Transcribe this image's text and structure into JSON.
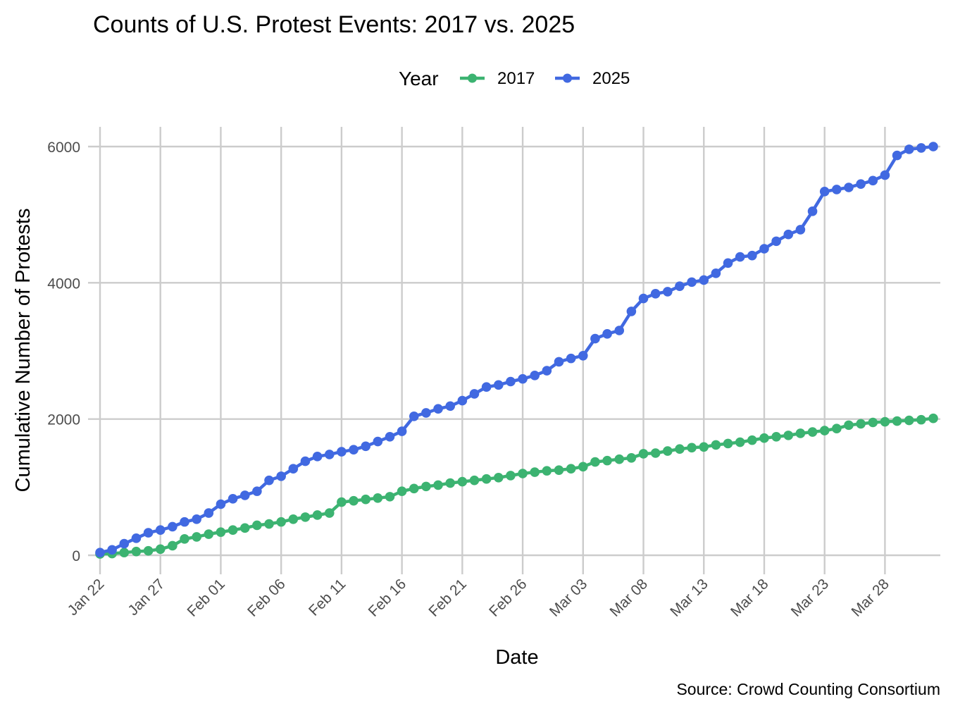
{
  "chart_data": {
    "type": "line",
    "title": "Counts of U.S. Protest Events: 2017 vs. 2025",
    "xlabel": "Date",
    "ylabel": "Cumulative Number of Protests",
    "caption": "Source: Crowd Counting Consortium",
    "legend": {
      "title": "Year",
      "position": "top"
    },
    "ylim": [
      -150,
      6300
    ],
    "yticks": [
      0,
      2000,
      4000,
      6000
    ],
    "x_start_label": "Jan 22",
    "num_days": 70,
    "xticks": [
      {
        "day": 0,
        "label": "Jan 22"
      },
      {
        "day": 5,
        "label": "Jan 27"
      },
      {
        "day": 10,
        "label": "Feb 01"
      },
      {
        "day": 15,
        "label": "Feb 06"
      },
      {
        "day": 20,
        "label": "Feb 11"
      },
      {
        "day": 25,
        "label": "Feb 16"
      },
      {
        "day": 30,
        "label": "Feb 21"
      },
      {
        "day": 35,
        "label": "Feb 26"
      },
      {
        "day": 40,
        "label": "Mar 03"
      },
      {
        "day": 45,
        "label": "Mar 08"
      },
      {
        "day": 50,
        "label": "Mar 13"
      },
      {
        "day": 55,
        "label": "Mar 18"
      },
      {
        "day": 60,
        "label": "Mar 23"
      },
      {
        "day": 65,
        "label": "Mar 28"
      }
    ],
    "series": [
      {
        "name": "2017",
        "color": "#3cb371",
        "values": [
          20,
          25,
          40,
          55,
          65,
          90,
          140,
          240,
          270,
          310,
          340,
          370,
          400,
          440,
          460,
          490,
          530,
          560,
          590,
          620,
          780,
          800,
          820,
          840,
          860,
          940,
          980,
          1010,
          1030,
          1060,
          1080,
          1100,
          1120,
          1140,
          1170,
          1200,
          1220,
          1240,
          1250,
          1270,
          1300,
          1370,
          1390,
          1410,
          1430,
          1490,
          1500,
          1530,
          1560,
          1580,
          1590,
          1620,
          1640,
          1660,
          1690,
          1720,
          1740,
          1760,
          1790,
          1810,
          1830,
          1860,
          1910,
          1930,
          1950,
          1960,
          1970,
          1980,
          1990,
          2010
        ]
      },
      {
        "name": "2025",
        "color": "#4169e1",
        "values": [
          40,
          80,
          170,
          250,
          330,
          370,
          420,
          490,
          530,
          620,
          750,
          830,
          880,
          940,
          1100,
          1160,
          1270,
          1380,
          1450,
          1480,
          1520,
          1550,
          1600,
          1670,
          1740,
          1820,
          2040,
          2090,
          2150,
          2190,
          2270,
          2370,
          2470,
          2500,
          2550,
          2590,
          2640,
          2710,
          2840,
          2890,
          2930,
          3180,
          3250,
          3300,
          3580,
          3770,
          3840,
          3870,
          3950,
          4010,
          4040,
          4140,
          4290,
          4380,
          4400,
          4500,
          4610,
          4710,
          4780,
          5050,
          5340,
          5370,
          5400,
          5450,
          5500,
          5580,
          5870,
          5960,
          5980,
          6000
        ]
      }
    ]
  }
}
